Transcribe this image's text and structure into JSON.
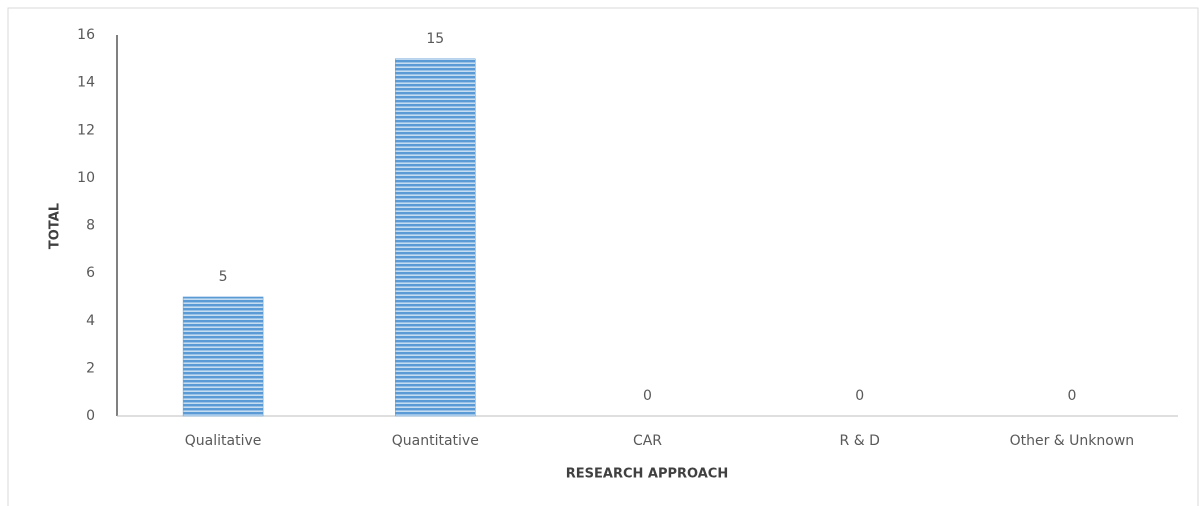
{
  "chart_data": {
    "type": "bar",
    "categories": [
      "Qualitative",
      "Quantitative",
      "CAR",
      "R & D",
      "Other & Unknown"
    ],
    "values": [
      5,
      15,
      0,
      0,
      0
    ],
    "color": "#5b9bd5",
    "xlabel": "RESEARCH APPROACH",
    "ylabel": "TOTAL",
    "ylim": [
      0,
      16
    ],
    "yticks": [
      0,
      2,
      4,
      6,
      8,
      10,
      12,
      14,
      16
    ],
    "grid": false
  }
}
